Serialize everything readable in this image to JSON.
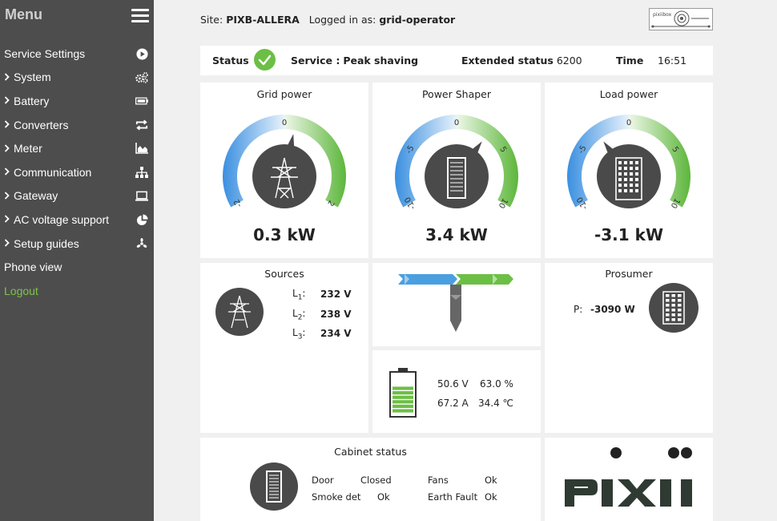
{
  "sidebar": {
    "title": "Menu",
    "items": [
      {
        "label": "Service Settings",
        "chevron": false,
        "icon": "play-circle-icon"
      },
      {
        "label": "System",
        "chevron": true,
        "icon": "gears-icon"
      },
      {
        "label": "Battery",
        "chevron": true,
        "icon": "battery-icon"
      },
      {
        "label": "Converters",
        "chevron": true,
        "icon": "converter-arrows-icon"
      },
      {
        "label": "Meter",
        "chevron": true,
        "icon": "area-chart-icon"
      },
      {
        "label": "Communication",
        "chevron": true,
        "icon": "network-icon"
      },
      {
        "label": "Gateway",
        "chevron": true,
        "icon": "laptop-icon"
      },
      {
        "label": "AC voltage support",
        "chevron": true,
        "icon": "pie-chart-icon"
      },
      {
        "label": "Setup guides",
        "chevron": true,
        "icon": "fan-icon"
      },
      {
        "label": "Phone view",
        "chevron": false,
        "icon": ""
      },
      {
        "label": "Logout",
        "chevron": false,
        "icon": ""
      }
    ]
  },
  "header": {
    "site_label": "Site:",
    "site_value": "PIXB-ALLERA",
    "logged_label": "Logged in as:",
    "logged_value": "grid-operator",
    "brand_logo_text": "pixiibox"
  },
  "status": {
    "status_label": "Status",
    "service_label": "Service :",
    "service_value": "Peak shaving",
    "ext_label": "Extended status",
    "ext_value": "6200",
    "time_label": "Time",
    "time_value": "16:51"
  },
  "gauges": [
    {
      "title": "Grid power",
      "value": "0.3 kW",
      "ticks": [
        "-2",
        "0",
        "2"
      ],
      "needle_fraction": 0.55
    },
    {
      "title": "Power Shaper",
      "value": "3.4 kW",
      "ticks": [
        "-10",
        "-5",
        "0",
        "5",
        "10"
      ],
      "needle_fraction": 0.65
    },
    {
      "title": "Load power",
      "value": "-3.1 kW",
      "ticks": [
        "-10",
        "-5",
        "0",
        "5",
        "10"
      ],
      "needle_fraction": 0.35
    }
  ],
  "sources": {
    "title": "Sources",
    "l1_label": "L",
    "l1_sub": "1",
    "l1_value": "232 V",
    "l2_label": "L",
    "l2_sub": "2",
    "l2_value": "238 V",
    "l3_label": "L",
    "l3_sub": "3",
    "l3_value": "234 V"
  },
  "battery": {
    "voltage": "50.6 V",
    "soc": "63.0 %",
    "current": "67.2 A",
    "temp": "34.4 ℃",
    "fill_fraction": 0.63
  },
  "prosumer": {
    "title": "Prosumer",
    "p_label": "P:",
    "p_value": "-3090 W"
  },
  "cabinet": {
    "title": "Cabinet status",
    "door_label": "Door",
    "door_value": "Closed",
    "smoke_label": "Smoke det",
    "smoke_value": "Ok",
    "fans_label": "Fans",
    "fans_value": "Ok",
    "earth_label": "Earth Fault",
    "earth_value": "Ok"
  },
  "logo": {
    "text": "PIXII"
  },
  "colors": {
    "sidebar": "#4d4d4d",
    "accent_green": "#6cbf45",
    "gauge_blue": "#4a9fe0",
    "gauge_green": "#6cbf45",
    "dark_icon": "#4a4a4a",
    "logout": "#7ec34a"
  }
}
